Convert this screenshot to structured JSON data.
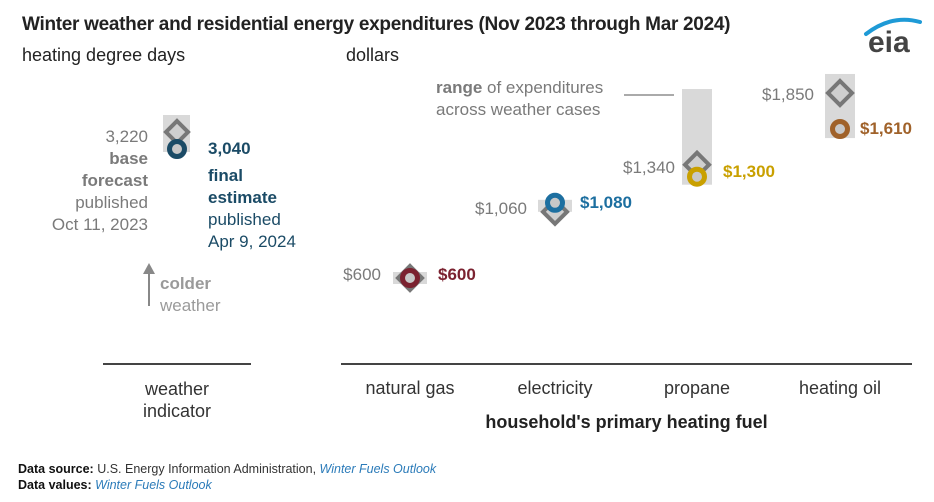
{
  "title": "Winter weather and residential energy expenditures (Nov 2023 through Mar 2024)",
  "logo_text": "eia",
  "left_unit": "heating degree days",
  "right_unit": "dollars",
  "weather": {
    "base_value": "3,220",
    "base_label_1": "base",
    "base_label_2": "forecast",
    "base_label_3": "published",
    "base_label_4": "Oct 11, 2023",
    "final_value": "3,040",
    "final_label_1": "final",
    "final_label_2": "estimate",
    "final_label_3": "published",
    "final_label_4": "Apr 9, 2024",
    "arrow_label_1": "colder",
    "arrow_label_2": "weather"
  },
  "range_note": {
    "bold": "range",
    "rest": " of expenditures",
    "line2": "across weather cases"
  },
  "axis": {
    "weather_label_1": "weather",
    "weather_label_2": "indicator",
    "fuel_axis_title": "household's primary heating fuel"
  },
  "footer": {
    "source_label": "Data source:",
    "source_text": " U.S. Energy Information Administration, ",
    "source_link": "Winter Fuels Outlook",
    "values_label": "Data values:",
    "values_link": "Winter Fuels Outlook"
  },
  "chart_data": {
    "type": "scatter",
    "title": "Winter weather and residential energy expenditures (Nov 2023 through Mar 2024)",
    "series": [
      {
        "name": "base forecast (published Oct 11, 2023)",
        "marker": "diamond"
      },
      {
        "name": "final estimate (published Apr 9, 2024)",
        "marker": "ring"
      }
    ],
    "weather_indicator": {
      "unit": "heating degree days",
      "base": 3220,
      "final": 3040,
      "range_color": "#d9d9d9"
    },
    "categories": [
      "natural gas",
      "electricity",
      "propane",
      "heating oil"
    ],
    "base_values": [
      600,
      1060,
      1340,
      1850
    ],
    "final_values": [
      600,
      1080,
      1300,
      1610
    ],
    "base_labels": [
      "$600",
      "$1,060",
      "$1,340",
      "$1,850"
    ],
    "final_labels": [
      "$600",
      "$1,080",
      "$1,300",
      "$1,610"
    ],
    "colors": [
      "#7b2230",
      "#1d6fa0",
      "#c9a000",
      "#a0622a"
    ],
    "weather_color": "#1b4b66",
    "base_color": "#777777",
    "xlabel": "household's primary heating fuel",
    "ylabel": "dollars"
  }
}
